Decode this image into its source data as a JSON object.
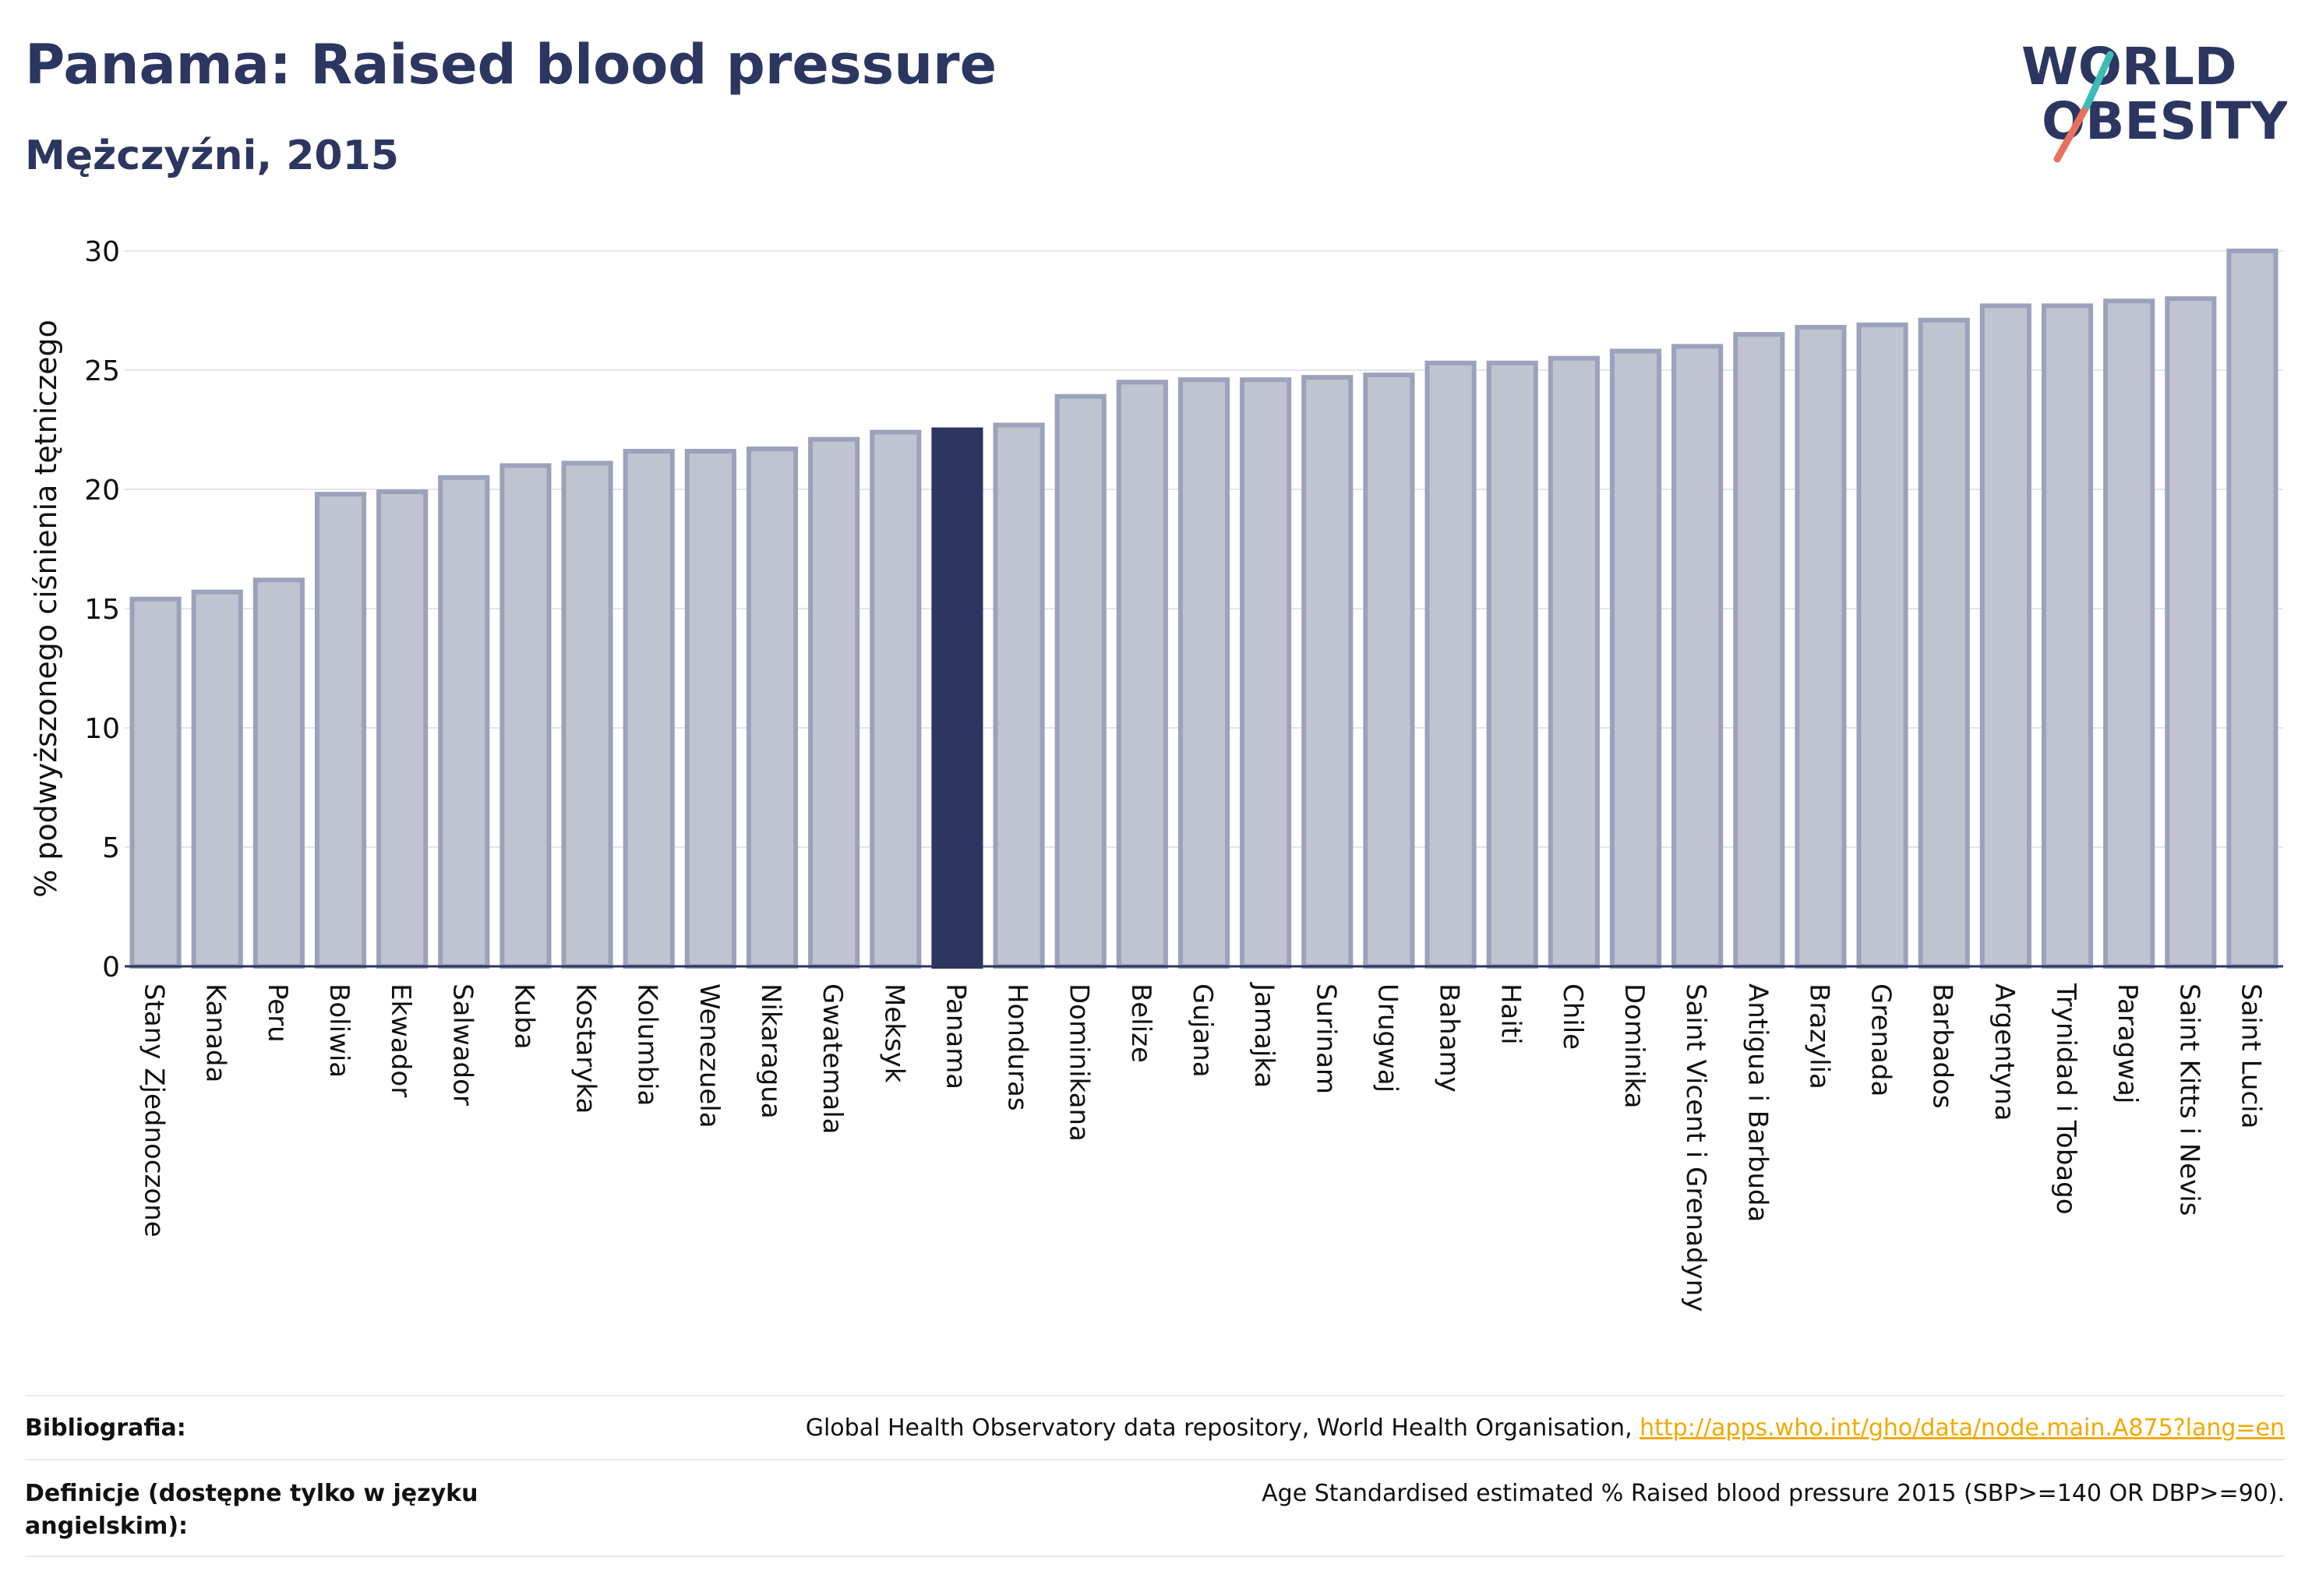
{
  "header": {
    "title": "Panama: Raised blood pressure",
    "subtitle": "Mężczyźni, 2015"
  },
  "logo": {
    "line1": "WORLD",
    "line2": "OBESITY",
    "stroke_colors": [
      "#e8705c",
      "#3cbcb4"
    ],
    "text_color": "#2c3660"
  },
  "chart_data": {
    "type": "bar",
    "ylabel": "% podwyższonego ciśnienia tętniczego",
    "xlabel": "",
    "ylim": [
      0,
      30
    ],
    "yticks": [
      0,
      5,
      10,
      15,
      20,
      25,
      30
    ],
    "grid": true,
    "highlight": "Panama",
    "colors": {
      "bar": "#c0c3d0",
      "bar_border": "#9ca2bb",
      "highlight": "#2c3660",
      "highlight_border": "#2c3660"
    },
    "categories": [
      "Stany Zjednoczone",
      "Kanada",
      "Peru",
      "Boliwia",
      "Ekwador",
      "Salwador",
      "Kuba",
      "Kostaryka",
      "Kolumbia",
      "Wenezuela",
      "Nikaragua",
      "Gwatemala",
      "Meksyk",
      "Panama",
      "Honduras",
      "Dominikana",
      "Belize",
      "Gujana",
      "Jamajka",
      "Surinam",
      "Urugwaj",
      "Bahamy",
      "Haiti",
      "Chile",
      "Dominika",
      "Saint Vicent i Grenadyny",
      "Antigua i Barbuda",
      "Brazylia",
      "Grenada",
      "Barbados",
      "Argentyna",
      "Trynidad i Tobago",
      "Paragwaj",
      "Saint Kitts i Nevis",
      "Saint Lucia"
    ],
    "values": [
      15.4,
      15.7,
      16.2,
      19.8,
      19.9,
      20.5,
      21.0,
      21.1,
      21.6,
      21.6,
      21.7,
      22.1,
      22.4,
      22.5,
      22.7,
      23.9,
      24.5,
      24.6,
      24.6,
      24.7,
      24.8,
      25.3,
      25.3,
      25.5,
      25.8,
      26.0,
      26.5,
      26.8,
      26.9,
      27.1,
      27.7,
      27.7,
      27.9,
      28.0,
      30.0
    ]
  },
  "footer": {
    "bibliography_label": "Bibliografia:",
    "bibliography_text": "Global Health Observatory data repository, World Health Organisation, ",
    "bibliography_link": "http://apps.who.int/gho/data/node.main.A875?lang=en",
    "definitions_label": "Definicje (dostępne tylko w języku angielskim):",
    "definitions_text": "Age Standardised estimated % Raised blood pressure 2015 (SBP>=140 OR DBP>=90)."
  }
}
